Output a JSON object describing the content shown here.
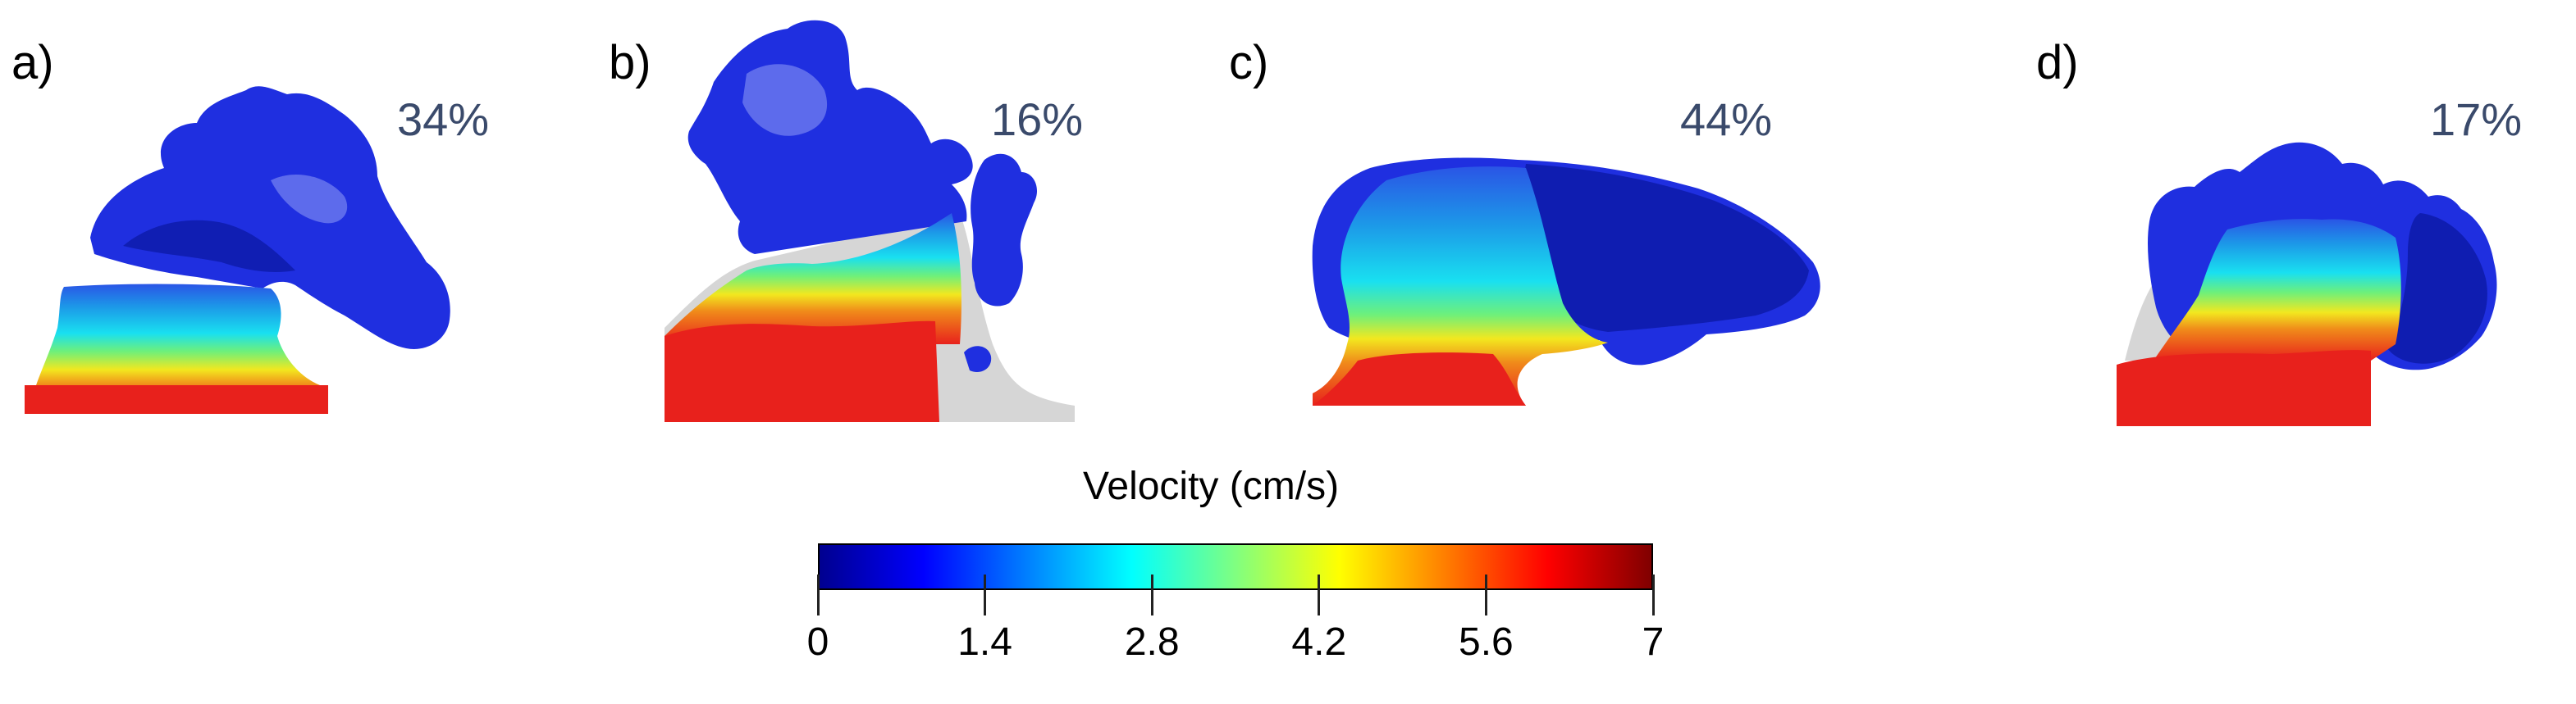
{
  "colors": {
    "percent_text": "#3a4a6b",
    "aneurysm_blue": "#1f2fe0",
    "aneurysm_dark": "#0d1aa8",
    "inflow_red": "#e8211c",
    "wall_gray": "#d6d6d6"
  },
  "panels": [
    {
      "letter": "a)",
      "percent": "34%"
    },
    {
      "letter": "b)",
      "percent": "16%"
    },
    {
      "letter": "c)",
      "percent": "44%"
    },
    {
      "letter": "d)",
      "percent": "17%"
    }
  ],
  "colorbar": {
    "title": "Velocity (cm/s)",
    "min": 0,
    "max": 7,
    "tick_labels": [
      "0",
      "1.4",
      "2.8",
      "4.2",
      "5.6",
      "7"
    ],
    "tick_values": [
      0,
      1.4,
      2.8,
      4.2,
      5.6,
      7
    ],
    "colors": [
      "#00008f",
      "#0000ff",
      "#0080ff",
      "#00ffff",
      "#80ff80",
      "#ffff00",
      "#ff8000",
      "#ff0000",
      "#800000"
    ]
  }
}
